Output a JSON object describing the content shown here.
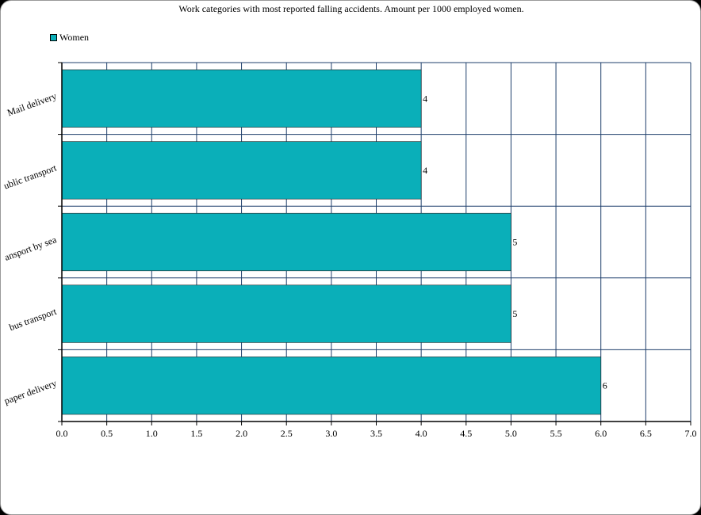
{
  "chart_data": {
    "type": "bar",
    "orientation": "horizontal",
    "title": "Work categories with most reported falling accidents. Amount per 1000 employed women.",
    "categories": [
      "Mail delivery",
      "Public transport",
      "Transport by sea",
      "Bus transport",
      "Newspaper delivery"
    ],
    "category_labels_visible": [
      "Mail delivery",
      "ublic transport",
      "ansport by sea",
      "bus transport",
      "paper delivery"
    ],
    "series": [
      {
        "name": "Women",
        "values": [
          4,
          4,
          5,
          5,
          6
        ]
      }
    ],
    "data_labels": [
      "4",
      "4",
      "5",
      "5",
      "6"
    ],
    "xlim": [
      0,
      7
    ],
    "x_ticks": [
      "0.0",
      "0.5",
      "1.0",
      "1.5",
      "2.0",
      "2.5",
      "3.0",
      "3.5",
      "4.0",
      "4.5",
      "5.0",
      "5.5",
      "6.0",
      "6.5",
      "7.0"
    ],
    "grid": true,
    "legend_position": "top-left",
    "bar_color": "#0aafb9",
    "grid_color": "#1f3f6b"
  }
}
